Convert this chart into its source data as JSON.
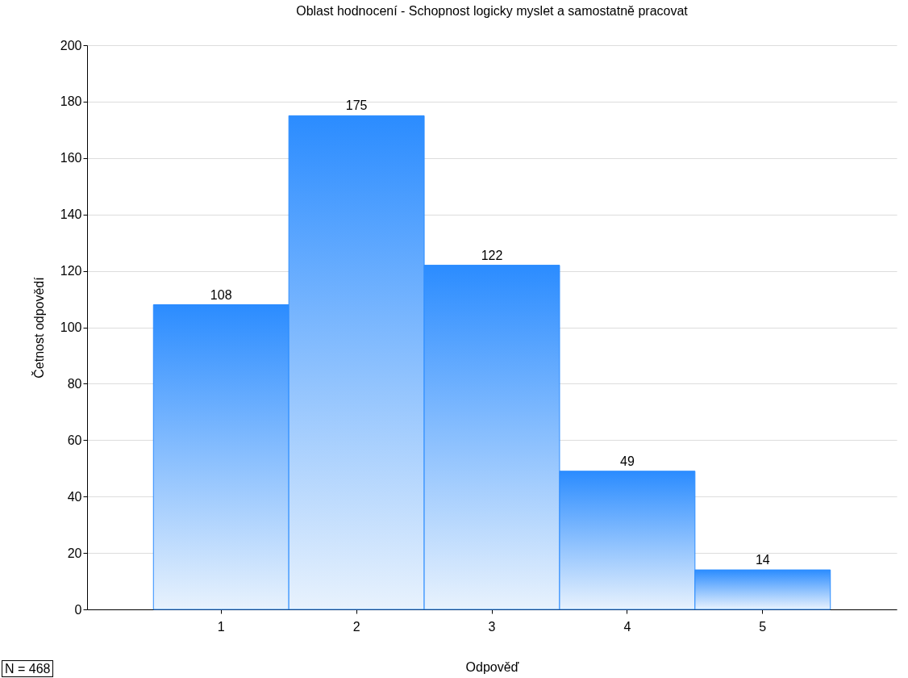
{
  "chart_data": {
    "type": "bar",
    "title": "Oblast hodnocení - Schopnost logicky myslet a samostatně pracovat",
    "xlabel": "Odpověď",
    "ylabel": "Četnost odpovědí",
    "categories": [
      "1",
      "2",
      "3",
      "4",
      "5"
    ],
    "values": [
      108,
      175,
      122,
      49,
      14
    ],
    "color": "#2b8cff",
    "ylim": [
      0,
      200
    ],
    "yticks": [
      0,
      20,
      40,
      60,
      80,
      100,
      120,
      140,
      160,
      180,
      200
    ],
    "grid": "y",
    "data_labels": true,
    "annotations": [
      "N = 468"
    ]
  }
}
